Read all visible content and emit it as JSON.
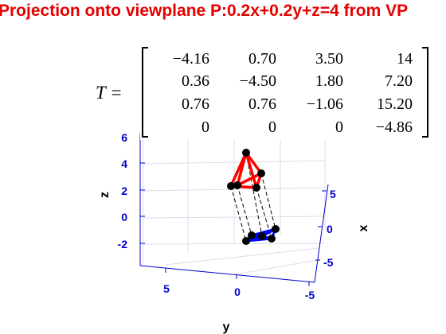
{
  "chart_data": {
    "type": "3d-projection",
    "title": "Projection onto viewplane P:0.2x+0.2y+z=4 from VP",
    "xlabel": "x",
    "ylabel": "y",
    "zlabel": "z",
    "xticks": [
      "5",
      "0",
      "-5"
    ],
    "yticks": [
      "5",
      "0",
      "-5"
    ],
    "zticks": [
      "6",
      "4",
      "2",
      "0",
      "-2"
    ],
    "xlim": [
      -6,
      6
    ],
    "ylim": [
      -6,
      6
    ],
    "zlim": [
      -3,
      7
    ],
    "grid": true,
    "matrix_label": "T =",
    "matrix": [
      [
        "−4.16",
        "0.70",
        "3.50",
        "14"
      ],
      [
        "0.36",
        "−4.50",
        "1.80",
        "7.20"
      ],
      [
        "0.76",
        "0.76",
        "−1.06",
        "15.20"
      ],
      [
        "0",
        "0",
        "0",
        "−4.86"
      ]
    ],
    "series": [
      {
        "color": "#ff0000",
        "description_points": "projected pyramid (red)"
      },
      {
        "color": "#0000ff",
        "description_points": "original pyramid (blue)"
      }
    ],
    "colors": {
      "axis": "#0000cc",
      "projected": "#ff0000",
      "original": "#0000ff",
      "title": "#e50000"
    }
  }
}
